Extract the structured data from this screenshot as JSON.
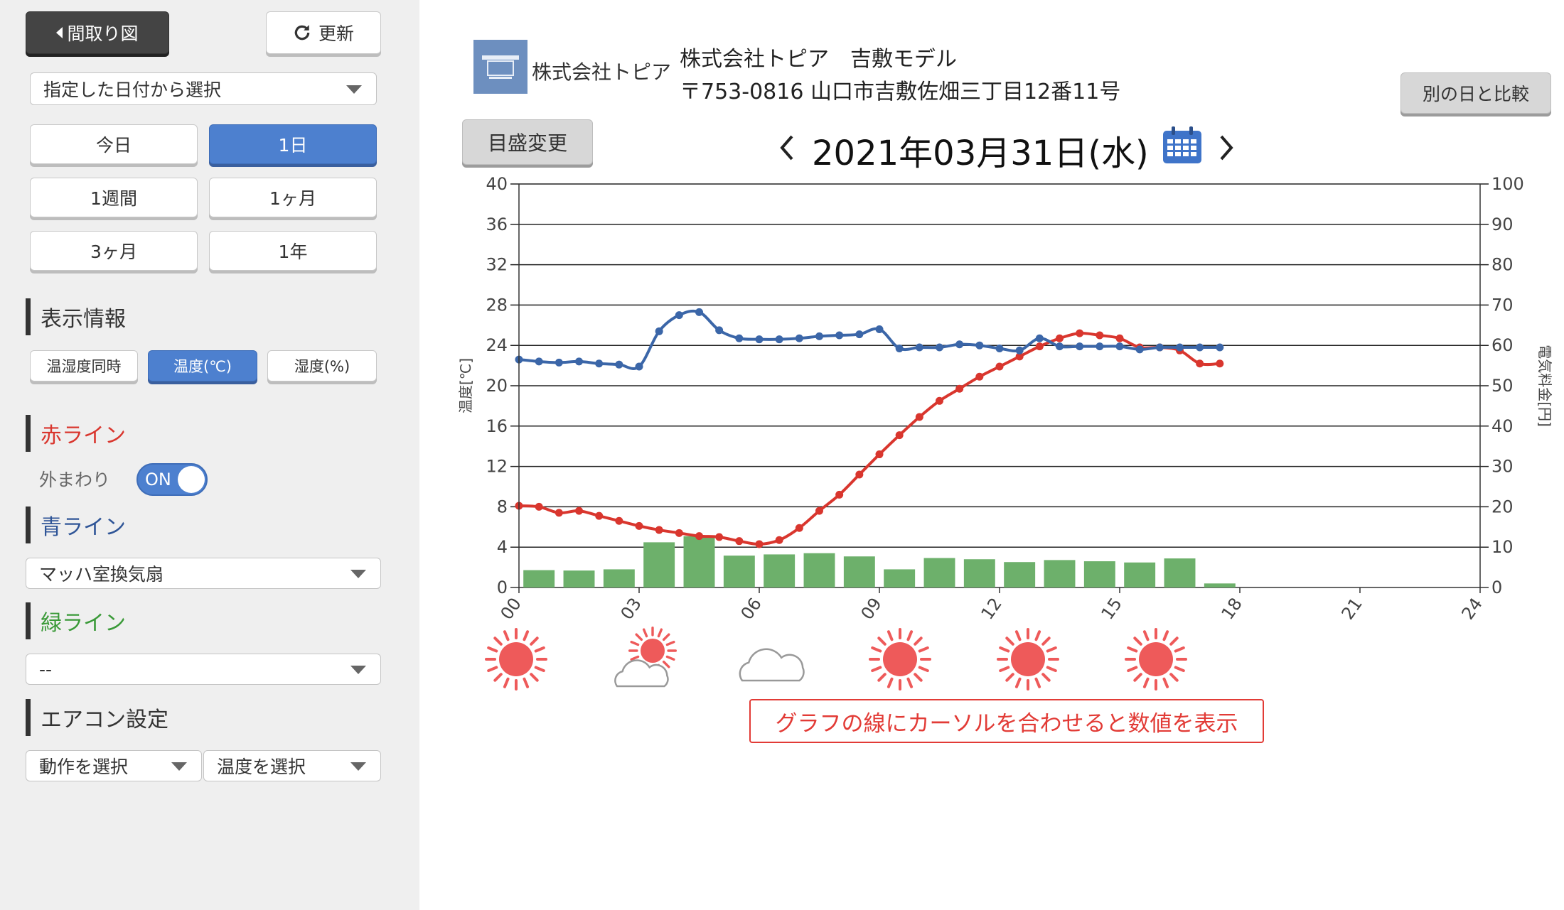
{
  "sidebar": {
    "back_label": "間取り図",
    "refresh_label": "更新",
    "date_select": "指定した日付から選択",
    "ranges": [
      "今日",
      "1日",
      "1週間",
      "1ヶ月",
      "3ヶ月",
      "1年"
    ],
    "active_range": 1,
    "display_info": {
      "title": "表示情報",
      "options": [
        "温湿度同時",
        "温度(℃)",
        "湿度(%)"
      ],
      "active": 1
    },
    "red_line": {
      "title": "赤ライン",
      "label": "外まわり",
      "toggle": "ON"
    },
    "blue_line": {
      "title": "青ライン",
      "select": "マッハ室換気扇"
    },
    "green_line": {
      "title": "緑ライン",
      "select": "--"
    },
    "aircon": {
      "title": "エアコン設定",
      "action_select": "動作を選択",
      "temp_select": "温度を選択"
    }
  },
  "header": {
    "logo_text": "株式会社トピア",
    "company_model": "株式会社トピア　吉敷モデル",
    "address": "〒753-0816 山口市吉敷佐畑三丁目12番11号",
    "compare_label": "別の日と比較",
    "scale_label": "目盛変更",
    "date": "2021年03月31日(水)"
  },
  "colors": {
    "red": "#d9362e",
    "blue": "#3b66a8",
    "green": "#6db06b",
    "accent": "#4d80cf"
  },
  "chart_data": {
    "type": "line",
    "ylabel": "温度[℃]",
    "y2label": "電気料金[円]",
    "ylim": [
      0,
      40
    ],
    "y2lim": [
      0,
      100
    ],
    "yticks": [
      "0",
      "4",
      "8",
      "12",
      "16",
      "20",
      "24",
      "28",
      "32",
      "36",
      "40"
    ],
    "y2ticks": [
      "0",
      "10",
      "20",
      "30",
      "40",
      "50",
      "60",
      "70",
      "80",
      "90",
      "100"
    ],
    "xlim": [
      0,
      24
    ],
    "xticks": [
      "00",
      "03",
      "06",
      "09",
      "12",
      "15",
      "18",
      "21",
      "24"
    ],
    "grid": true,
    "series": [
      {
        "color": "red",
        "x": [
          0,
          0.5,
          1,
          1.5,
          2,
          2.5,
          3,
          3.5,
          4,
          4.5,
          5,
          5.5,
          6,
          6.5,
          7,
          7.5,
          8,
          8.5,
          9,
          9.5,
          10,
          10.5,
          11,
          11.5,
          12,
          12.5,
          13,
          13.5,
          14,
          14.5,
          15,
          15.5,
          16,
          16.5,
          17,
          17.5
        ],
        "y": [
          8.1,
          8.0,
          7.4,
          7.6,
          7.1,
          6.6,
          6.1,
          5.7,
          5.4,
          5.1,
          5.0,
          4.6,
          4.3,
          4.7,
          5.9,
          7.6,
          9.2,
          11.2,
          13.2,
          15.1,
          16.9,
          18.5,
          19.7,
          20.9,
          21.9,
          22.9,
          23.9,
          24.7,
          25.2,
          25.0,
          24.7,
          23.8,
          23.8,
          23.5,
          22.2,
          22.2
        ]
      },
      {
        "color": "blue",
        "x": [
          0,
          0.5,
          1,
          1.5,
          2,
          2.5,
          3,
          3.5,
          4,
          4.5,
          5,
          5.5,
          6,
          6.5,
          7,
          7.5,
          8,
          8.5,
          9,
          9.5,
          10,
          10.5,
          11,
          11.5,
          12,
          12.5,
          13,
          13.5,
          14,
          14.5,
          15,
          15.5,
          16,
          16.5,
          17,
          17.5
        ],
        "y": [
          22.6,
          22.4,
          22.3,
          22.4,
          22.2,
          22.1,
          21.9,
          25.4,
          27.0,
          27.3,
          25.5,
          24.7,
          24.6,
          24.6,
          24.7,
          24.9,
          25.0,
          25.1,
          25.6,
          23.7,
          23.8,
          23.8,
          24.1,
          24.0,
          23.7,
          23.5,
          24.7,
          23.9,
          23.9,
          23.9,
          23.9,
          23.6,
          23.8,
          23.8,
          23.8,
          23.8
        ]
      }
    ],
    "bars": {
      "color": "green",
      "x": [
        0.5,
        1.5,
        2.5,
        3.5,
        4.5,
        5.5,
        6.5,
        7.5,
        8.5,
        9.5,
        10.5,
        11.5,
        12.5,
        13.5,
        14.5,
        15.5,
        16.5,
        17.5
      ],
      "values": [
        4.3,
        4.2,
        4.5,
        11.2,
        12.7,
        7.9,
        8.2,
        8.5,
        7.7,
        4.5,
        7.3,
        7.0,
        6.3,
        6.8,
        6.5,
        6.2,
        7.2,
        1.0
      ]
    }
  },
  "weather": [
    "sunny-icon",
    "cloudy-sun-icon",
    "cloud-icon",
    "sunny-icon",
    "sunny-icon",
    "sunny-icon"
  ],
  "hint": "グラフの線にカーソルを合わせると数値を表示"
}
